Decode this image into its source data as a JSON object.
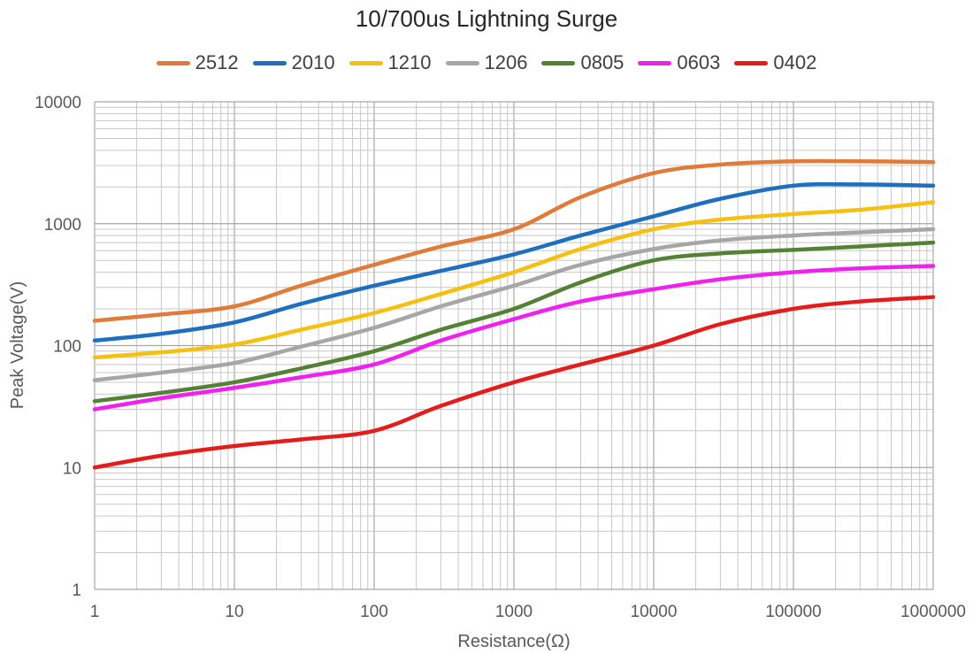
{
  "chart_data": {
    "type": "line",
    "title": "10/700us Lightning Surge",
    "xlabel": "Resistance(Ω)",
    "ylabel": "Peak Voltage(V)",
    "xscale": "log",
    "yscale": "log",
    "xlim": [
      1,
      1000000
    ],
    "ylim": [
      1,
      10000
    ],
    "grid": true,
    "legend_position": "top",
    "x_tick_labels": [
      "1",
      "10",
      "100",
      "1000",
      "10000",
      "100000",
      "1000000"
    ],
    "y_tick_labels": [
      "10000",
      "1000",
      "100",
      "10",
      "1"
    ],
    "x": [
      1,
      3,
      10,
      30,
      100,
      300,
      1000,
      3000,
      10000,
      30000,
      100000,
      300000,
      1000000
    ],
    "series": [
      {
        "name": "2512",
        "color": "#e07b39",
        "values": [
          160,
          180,
          210,
          310,
          460,
          650,
          900,
          1650,
          2600,
          3050,
          3250,
          3250,
          3200
        ]
      },
      {
        "name": "2010",
        "color": "#1f6fc1",
        "values": [
          110,
          125,
          155,
          220,
          310,
          410,
          560,
          800,
          1150,
          1600,
          2050,
          2100,
          2050
        ]
      },
      {
        "name": "1210",
        "color": "#f5c010",
        "values": [
          80,
          88,
          102,
          135,
          185,
          265,
          400,
          620,
          900,
          1080,
          1200,
          1300,
          1500
        ]
      },
      {
        "name": "1206",
        "color": "#a6a6a6",
        "values": [
          52,
          60,
          72,
          98,
          140,
          210,
          310,
          460,
          620,
          730,
          800,
          850,
          900
        ]
      },
      {
        "name": "0805",
        "color": "#548235",
        "values": [
          35,
          41,
          50,
          65,
          90,
          135,
          200,
          330,
          500,
          570,
          610,
          650,
          700
        ]
      },
      {
        "name": "0603",
        "color": "#f020ef",
        "values": [
          30,
          37,
          45,
          55,
          70,
          110,
          165,
          230,
          290,
          350,
          400,
          430,
          450
        ]
      },
      {
        "name": "0402",
        "color": "#e51c1c",
        "values": [
          10,
          12.5,
          15,
          17,
          20,
          32,
          50,
          70,
          100,
          150,
          200,
          230,
          250
        ]
      }
    ]
  }
}
